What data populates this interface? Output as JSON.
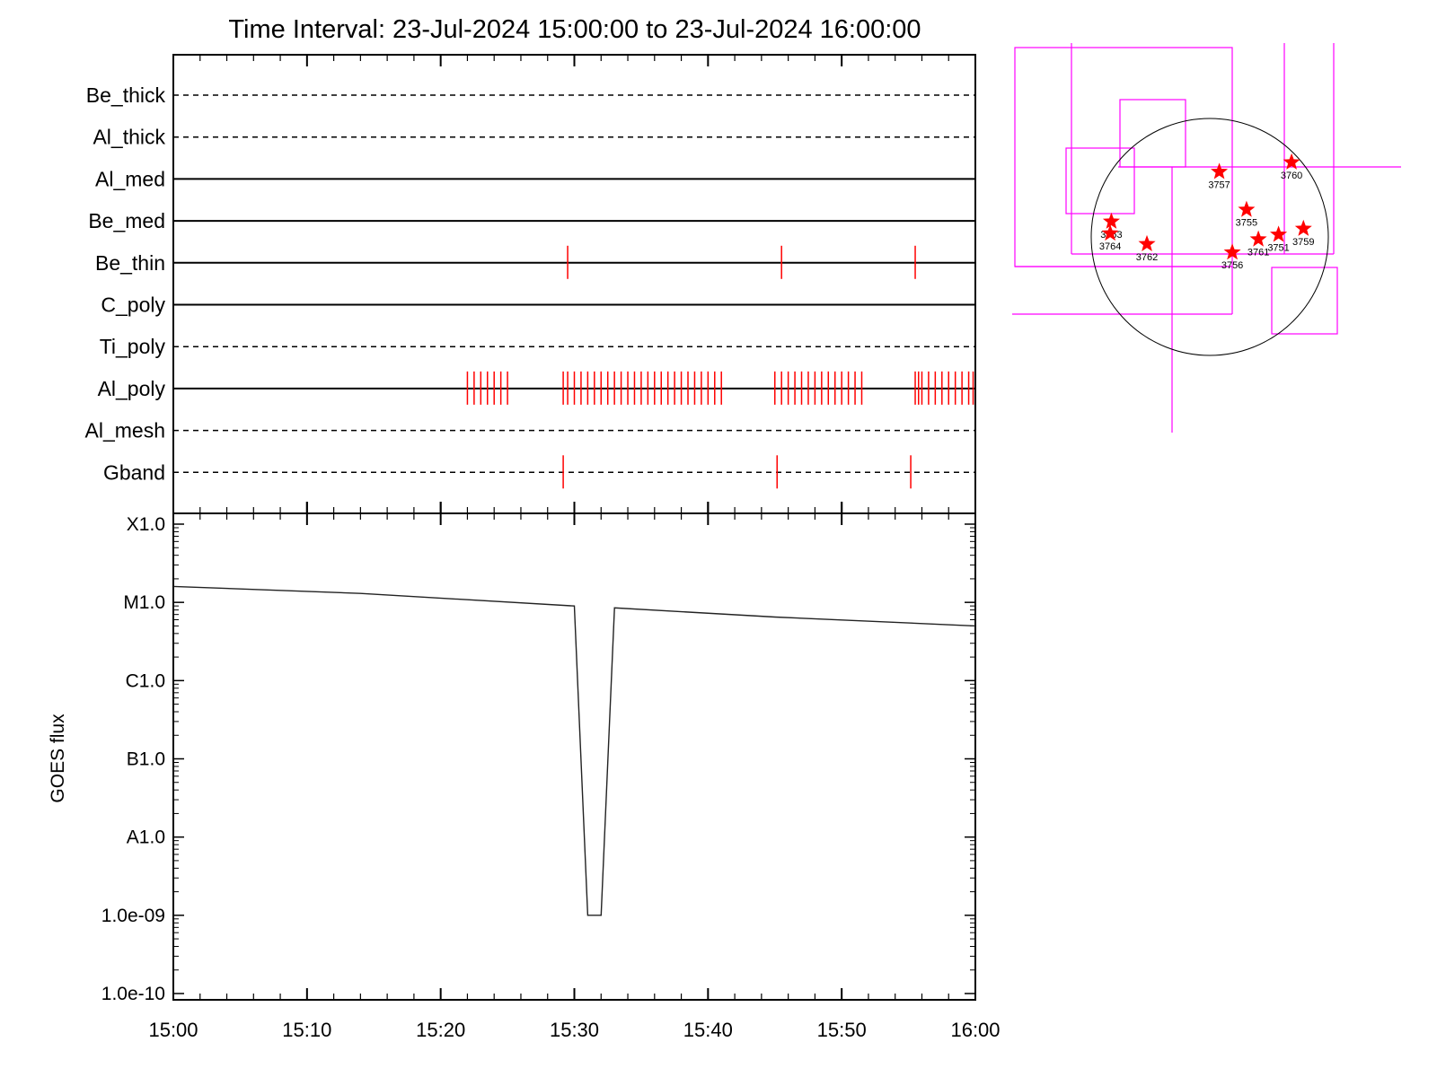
{
  "title": "Time Interval: 23-Jul-2024 15:00:00 to 23-Jul-2024 16:00:00",
  "colors": {
    "event": "#ff0000",
    "box": "#ff00ff",
    "axis": "#000000",
    "disk": "#000000"
  },
  "chart_data": [
    {
      "type": "event-timeline",
      "x_range": [
        "15:00",
        "16:00"
      ],
      "channels": [
        {
          "name": "Be_thick",
          "style": "dashed",
          "events": []
        },
        {
          "name": "Al_thick",
          "style": "dashed",
          "events": []
        },
        {
          "name": "Al_med",
          "style": "solid",
          "events": []
        },
        {
          "name": "Be_med",
          "style": "solid",
          "events": []
        },
        {
          "name": "Be_thin",
          "style": "solid",
          "events": [
            "15:29:30",
            "15:45:30",
            "15:55:30"
          ]
        },
        {
          "name": "C_poly",
          "style": "solid",
          "events": []
        },
        {
          "name": "Ti_poly",
          "style": "dashed",
          "events": []
        },
        {
          "name": "Al_poly",
          "style": "solid",
          "events": [
            "15:22:00",
            "15:22:30",
            "15:23:00",
            "15:23:30",
            "15:24:00",
            "15:24:30",
            "15:25:00",
            "15:29:10",
            "15:29:30",
            "15:30:00",
            "15:30:30",
            "15:31:00",
            "15:31:30",
            "15:32:00",
            "15:32:30",
            "15:33:00",
            "15:33:30",
            "15:34:00",
            "15:34:30",
            "15:35:00",
            "15:35:30",
            "15:36:00",
            "15:36:30",
            "15:37:00",
            "15:37:30",
            "15:38:00",
            "15:38:30",
            "15:39:00",
            "15:39:30",
            "15:40:00",
            "15:40:30",
            "15:41:00",
            "15:45:00",
            "15:45:30",
            "15:46:00",
            "15:46:30",
            "15:47:00",
            "15:47:30",
            "15:48:00",
            "15:48:30",
            "15:49:00",
            "15:49:30",
            "15:50:00",
            "15:50:30",
            "15:51:00",
            "15:51:30",
            "15:55:30",
            "15:55:45",
            "15:56:00",
            "15:56:30",
            "15:57:00",
            "15:57:30",
            "15:58:00",
            "15:58:30",
            "15:59:00",
            "15:59:30",
            "15:59:50"
          ]
        },
        {
          "name": "Al_mesh",
          "style": "dashed",
          "events": []
        },
        {
          "name": "Gband",
          "style": "dashed",
          "events": [
            "15:29:10",
            "15:45:10",
            "15:55:10"
          ]
        }
      ]
    },
    {
      "type": "line",
      "ylabel": "GOES flux",
      "yscale": "log",
      "y_ticks": [
        {
          "value": 1e-10,
          "label": "1.0e-10"
        },
        {
          "value": 1e-09,
          "label": "1.0e-09"
        },
        {
          "value": 1e-08,
          "label": "A1.0"
        },
        {
          "value": 1e-07,
          "label": "B1.0"
        },
        {
          "value": 1e-06,
          "label": "C1.0"
        },
        {
          "value": 1e-05,
          "label": "M1.0"
        },
        {
          "value": 0.0001,
          "label": "X1.0"
        }
      ],
      "ylim": [
        1e-10,
        0.0001
      ],
      "x_ticks": [
        "15:00",
        "15:10",
        "15:20",
        "15:30",
        "15:40",
        "15:50",
        "16:00"
      ],
      "x": [
        "15:00",
        "15:14",
        "15:30",
        "15:31",
        "15:32",
        "15:33",
        "15:45",
        "16:00"
      ],
      "y": [
        1.6e-05,
        1.3e-05,
        9e-06,
        1e-09,
        1e-09,
        8.5e-06,
        6.5e-06,
        5e-06
      ]
    },
    {
      "type": "solar-map",
      "regions": [
        {
          "label": "3757",
          "lon": 0.08,
          "lat": 0.55
        },
        {
          "label": "3760",
          "lon": 0.69,
          "lat": 0.63
        },
        {
          "label": "3755",
          "lon": 0.31,
          "lat": 0.23
        },
        {
          "label": "3763",
          "lon": -0.83,
          "lat": 0.13
        },
        {
          "label": "3764",
          "lon": -0.84,
          "lat": 0.03
        },
        {
          "label": "3762",
          "lon": -0.53,
          "lat": -0.06
        },
        {
          "label": "3756",
          "lon": 0.19,
          "lat": -0.13
        },
        {
          "label": "3761",
          "lon": 0.41,
          "lat": -0.02
        },
        {
          "label": "3751",
          "lon": 0.58,
          "lat": 0.02
        },
        {
          "label": "3759",
          "lon": 0.79,
          "lat": 0.07
        }
      ]
    }
  ]
}
